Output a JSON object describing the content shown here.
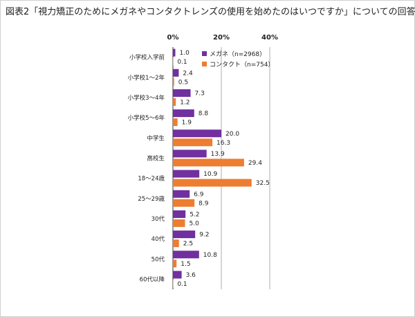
{
  "title": "図表2「視力矯正のためにメガネやコンタクトレンズの使用を始めたのはいつですか」についての回答",
  "colors": {
    "megane": "#7030a0",
    "contact": "#ed7d31",
    "grid": "#999999",
    "axis": "#333333"
  },
  "chart_data": {
    "type": "bar",
    "orientation": "horizontal",
    "title": "図表2「視力矯正のためにメガネやコンタクトレンズの使用を始めたのはいつですか」についての回答",
    "xlabel": "",
    "ylabel": "",
    "xlim": [
      0,
      40
    ],
    "ticks": [
      0,
      20,
      40
    ],
    "tick_labels": [
      "0%",
      "20%",
      "40%"
    ],
    "grid": true,
    "legend_position": "top-right",
    "categories": [
      "小学校入学前",
      "小学校1～2年",
      "小学校3～4年",
      "小学校5～6年",
      "中学生",
      "高校生",
      "18～24歳",
      "25～29歳",
      "30代",
      "40代",
      "50代",
      "60代以降"
    ],
    "series": [
      {
        "name": "メガネ（n=2968）",
        "color": "#7030a0",
        "values": [
          1.0,
          2.4,
          7.3,
          8.8,
          20.0,
          13.9,
          10.9,
          6.9,
          5.2,
          9.2,
          10.8,
          3.6
        ]
      },
      {
        "name": "コンタクト（n=754）",
        "color": "#ed7d31",
        "values": [
          0.1,
          0.5,
          1.2,
          1.9,
          16.3,
          29.4,
          32.5,
          8.9,
          5.0,
          2.5,
          1.5,
          0.1
        ]
      }
    ]
  }
}
